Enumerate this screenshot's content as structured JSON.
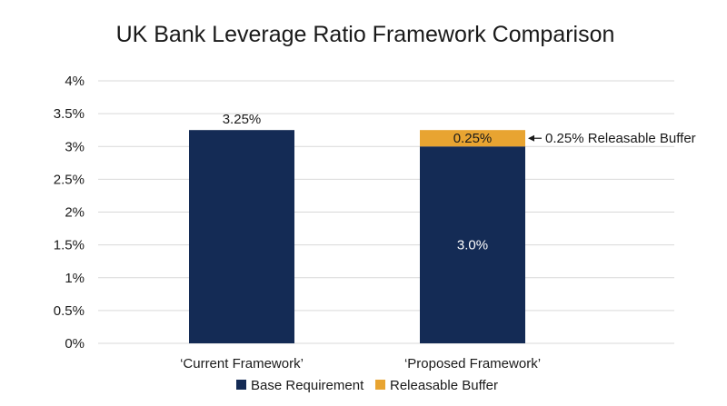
{
  "chart_data": {
    "type": "bar",
    "stacked": true,
    "title": "UK Bank Leverage Ratio Framework Comparison",
    "xlabel": "",
    "ylabel": "",
    "categories": [
      "‘Current Framework’",
      "‘Proposed Framework’"
    ],
    "ylim": [
      0,
      4
    ],
    "yticks": [
      0,
      0.5,
      1,
      1.5,
      2,
      2.5,
      3,
      3.5,
      4
    ],
    "ytick_labels": [
      "0%",
      "0.5%",
      "1%",
      "1.5%",
      "2%",
      "2.5%",
      "3%",
      "3.5%",
      "4%"
    ],
    "grid": true,
    "legend_position": "bottom-center",
    "series": [
      {
        "name": "Base Requirement",
        "color": "#142b55",
        "values": [
          3.25,
          3.0
        ],
        "data_labels": [
          "3.25%",
          "3.0%"
        ],
        "label_placement": [
          "above",
          "inside"
        ]
      },
      {
        "name": "Releasable Buffer",
        "color": "#e8a431",
        "values": [
          0,
          0.25
        ],
        "data_labels": [
          "",
          "0.25%"
        ],
        "label_placement": [
          "none",
          "inside"
        ]
      }
    ],
    "annotations": [
      {
        "text": "0.25% Releasable Buffer",
        "category_index": 1,
        "value": 3.125,
        "arrow": true
      }
    ]
  }
}
